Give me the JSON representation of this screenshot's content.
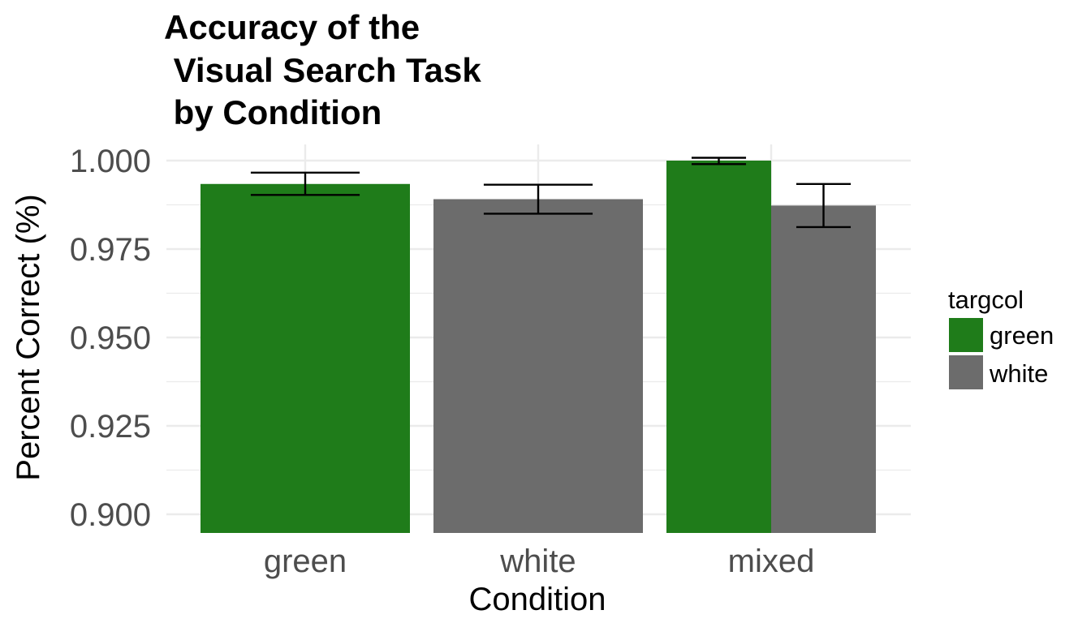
{
  "chart_data": {
    "type": "bar",
    "title_lines": [
      "Accuracy of the",
      " Visual Search Task",
      " by Condition"
    ],
    "xlabel": "Condition",
    "ylabel": "Percent Correct (%)",
    "categories": [
      "green",
      "white",
      "mixed"
    ],
    "y_ticks": [
      "0.900",
      "0.925",
      "0.950",
      "0.975",
      "1.000"
    ],
    "ylim": [
      0.895,
      1.002
    ],
    "grid": true,
    "legend": {
      "title": "targcol",
      "position": "right",
      "entries": [
        {
          "label": "green",
          "color": "#1f7c1a"
        },
        {
          "label": "white",
          "color": "#6c6c6c"
        }
      ]
    },
    "series": [
      {
        "fill": "green",
        "points": [
          {
            "category": "green",
            "value": 0.9934,
            "err_low": 0.9903,
            "err_high": 0.9966
          },
          {
            "category": "mixed",
            "value": 1.0,
            "err_low": 0.999,
            "err_high": 1.0008
          }
        ]
      },
      {
        "fill": "white",
        "points": [
          {
            "category": "white",
            "value": 0.9891,
            "err_low": 0.985,
            "err_high": 0.9932
          },
          {
            "category": "mixed",
            "value": 0.9873,
            "err_low": 0.9812,
            "err_high": 0.9934
          }
        ]
      }
    ]
  },
  "colors": {
    "green": "#1f7c1a",
    "white": "#6c6c6c",
    "grid": "#ebebeb",
    "errorbar": "#000000"
  }
}
